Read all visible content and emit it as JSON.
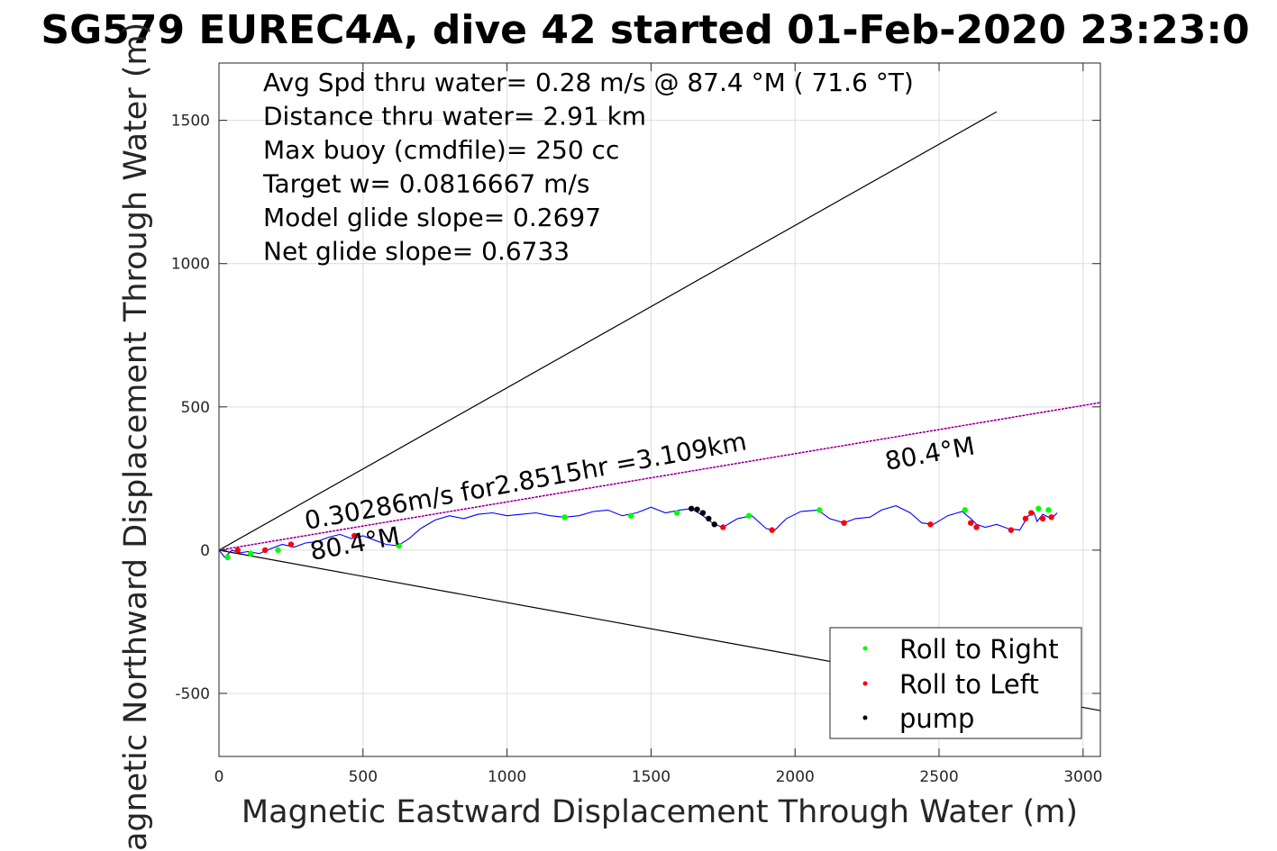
{
  "chart_data": {
    "type": "line",
    "title": "SG579 EUREC4A, dive 42 started 01-Feb-2020 23:23:0",
    "xlabel": "Magnetic Eastward Displacement Through Water (m)",
    "ylabel": "Magnetic Northward Displacement Through Water (m)",
    "xlim": [
      0,
      3060
    ],
    "ylim": [
      -720,
      1700
    ],
    "xticks": [
      0,
      500,
      1000,
      1500,
      2000,
      2500,
      3000
    ],
    "yticks": [
      -500,
      0,
      500,
      1000,
      1500
    ],
    "grid": true,
    "legend_position": "bottom-right",
    "stats": [
      "Avg Spd thru water=  0.28 m/s @  87.4 °M ( 71.6 °T)",
      "Distance thru water=  2.91 km",
      "Max buoy (cmdfile)= 250 cc",
      "Target w= 0.0816667 m/s",
      "Model glide slope= 0.2697",
      "Net glide slope= 0.6733"
    ],
    "annotations": {
      "current_label": "0.30286m/s for2.8515hr =3.109km",
      "heading_label_1": "80.4°M",
      "heading_label_2": "80.4°M"
    },
    "reference_lines": [
      {
        "x": [
          0,
          2700
        ],
        "y": [
          0,
          1530
        ]
      },
      {
        "x": [
          0,
          3060
        ],
        "y": [
          0,
          -560
        ]
      },
      {
        "x": [
          0,
          3060
        ],
        "y": [
          0,
          515
        ]
      }
    ],
    "track": {
      "x": [
        0,
        20,
        30,
        45,
        70,
        100,
        140,
        180,
        220,
        260,
        300,
        340,
        380,
        420,
        460,
        500,
        540,
        580,
        620,
        660,
        700,
        750,
        800,
        850,
        900,
        950,
        1000,
        1050,
        1100,
        1150,
        1200,
        1250,
        1300,
        1350,
        1400,
        1450,
        1500,
        1550,
        1600,
        1640,
        1680,
        1720,
        1750,
        1800,
        1850,
        1900,
        1930,
        1970,
        2020,
        2080,
        2120,
        2170,
        2210,
        2260,
        2300,
        2350,
        2400,
        2440,
        2480,
        2530,
        2580,
        2610,
        2630,
        2660,
        2700,
        2740,
        2780,
        2810,
        2830,
        2840,
        2860,
        2880,
        2900,
        2910
      ],
      "y": [
        0,
        -25,
        -15,
        0,
        -10,
        -5,
        -12,
        5,
        20,
        10,
        25,
        30,
        45,
        55,
        40,
        50,
        35,
        20,
        15,
        40,
        75,
        105,
        120,
        110,
        125,
        130,
        120,
        125,
        130,
        120,
        115,
        120,
        135,
        140,
        120,
        130,
        150,
        130,
        140,
        145,
        120,
        90,
        80,
        110,
        120,
        75,
        70,
        110,
        135,
        140,
        110,
        95,
        110,
        115,
        140,
        155,
        130,
        95,
        90,
        120,
        135,
        110,
        90,
        80,
        90,
        75,
        70,
        120,
        130,
        100,
        125,
        115,
        120,
        130
      ]
    },
    "series": [
      {
        "name": "Roll to Right",
        "color": "#00ff00"
      },
      {
        "name": "Roll to Left",
        "color": "#ff0000"
      },
      {
        "name": "pump",
        "color": "#000000"
      }
    ],
    "roll_right_points": {
      "x": [
        30,
        110,
        205,
        625,
        1200,
        1430,
        1590,
        1840,
        2085,
        2590,
        2845,
        2880
      ],
      "y": [
        -25,
        -12,
        0,
        15,
        115,
        120,
        130,
        120,
        140,
        140,
        145,
        140
      ]
    },
    "roll_left_points": {
      "x": [
        65,
        160,
        250,
        470,
        1750,
        1920,
        2170,
        2470,
        2610,
        2630,
        2750,
        2800,
        2820,
        2860,
        2890
      ],
      "y": [
        0,
        0,
        20,
        50,
        80,
        70,
        95,
        90,
        95,
        80,
        70,
        110,
        130,
        110,
        115
      ]
    },
    "pump_points": {
      "x": [
        1640,
        1660,
        1680,
        1700,
        1720
      ],
      "y": [
        145,
        142,
        130,
        110,
        90
      ]
    },
    "colors": {
      "track": "#0000ff",
      "reference": "#000000",
      "current_line": "#ff00ff"
    }
  }
}
